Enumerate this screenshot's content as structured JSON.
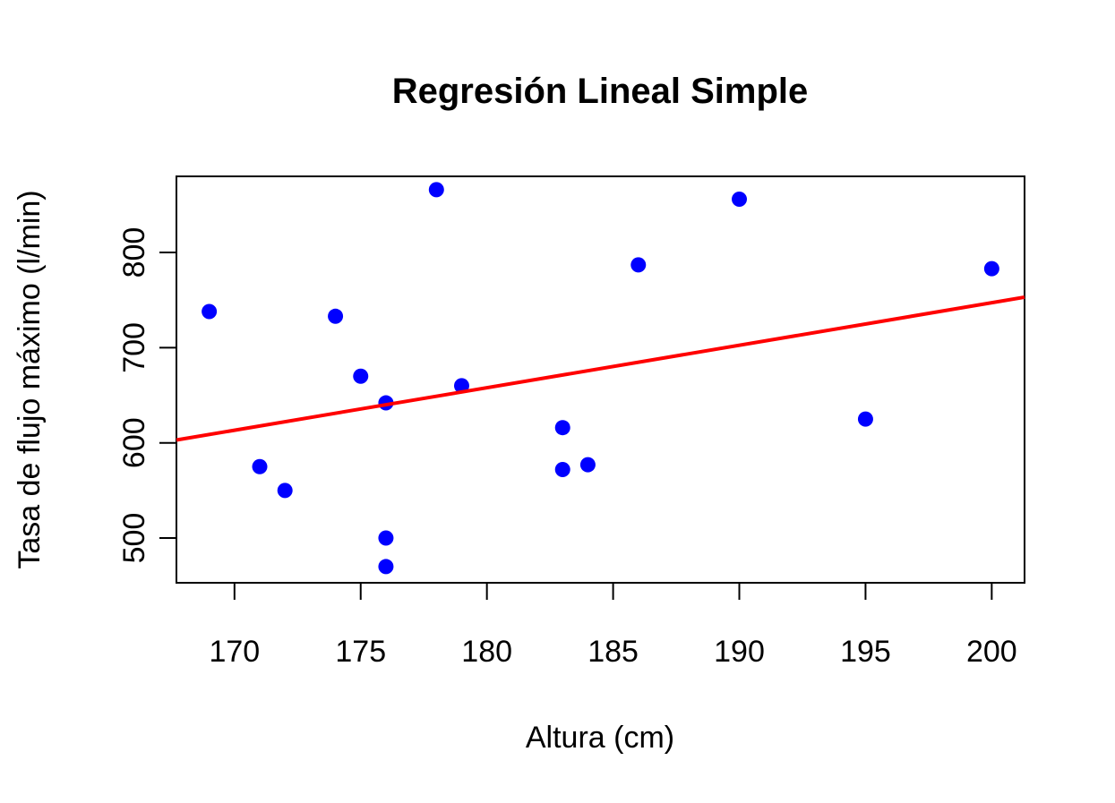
{
  "chart_data": {
    "type": "scatter",
    "title": "Regresión Lineal Simple",
    "xlabel": "Altura (cm)",
    "ylabel": "Tasa de flujo máximo (l/min)",
    "xlim": [
      167.7,
      201.3
    ],
    "ylim": [
      453,
      880
    ],
    "xticks": [
      170,
      175,
      180,
      185,
      190,
      195,
      200
    ],
    "yticks": [
      500,
      600,
      700,
      800
    ],
    "grid": false,
    "point_color": "#0000ff",
    "line_color": "#ff0000",
    "points": [
      {
        "x": 169,
        "y": 738
      },
      {
        "x": 171,
        "y": 575
      },
      {
        "x": 172,
        "y": 550
      },
      {
        "x": 174,
        "y": 733
      },
      {
        "x": 175,
        "y": 670
      },
      {
        "x": 176,
        "y": 642
      },
      {
        "x": 176,
        "y": 500
      },
      {
        "x": 176,
        "y": 470
      },
      {
        "x": 178,
        "y": 866
      },
      {
        "x": 179,
        "y": 660
      },
      {
        "x": 183,
        "y": 616
      },
      {
        "x": 183,
        "y": 572
      },
      {
        "x": 184,
        "y": 577
      },
      {
        "x": 186,
        "y": 787
      },
      {
        "x": 190,
        "y": 856
      },
      {
        "x": 195,
        "y": 625
      },
      {
        "x": 200,
        "y": 783
      }
    ],
    "regression_line": [
      {
        "x": 167.7,
        "y": 603
      },
      {
        "x": 201.3,
        "y": 753
      }
    ]
  }
}
